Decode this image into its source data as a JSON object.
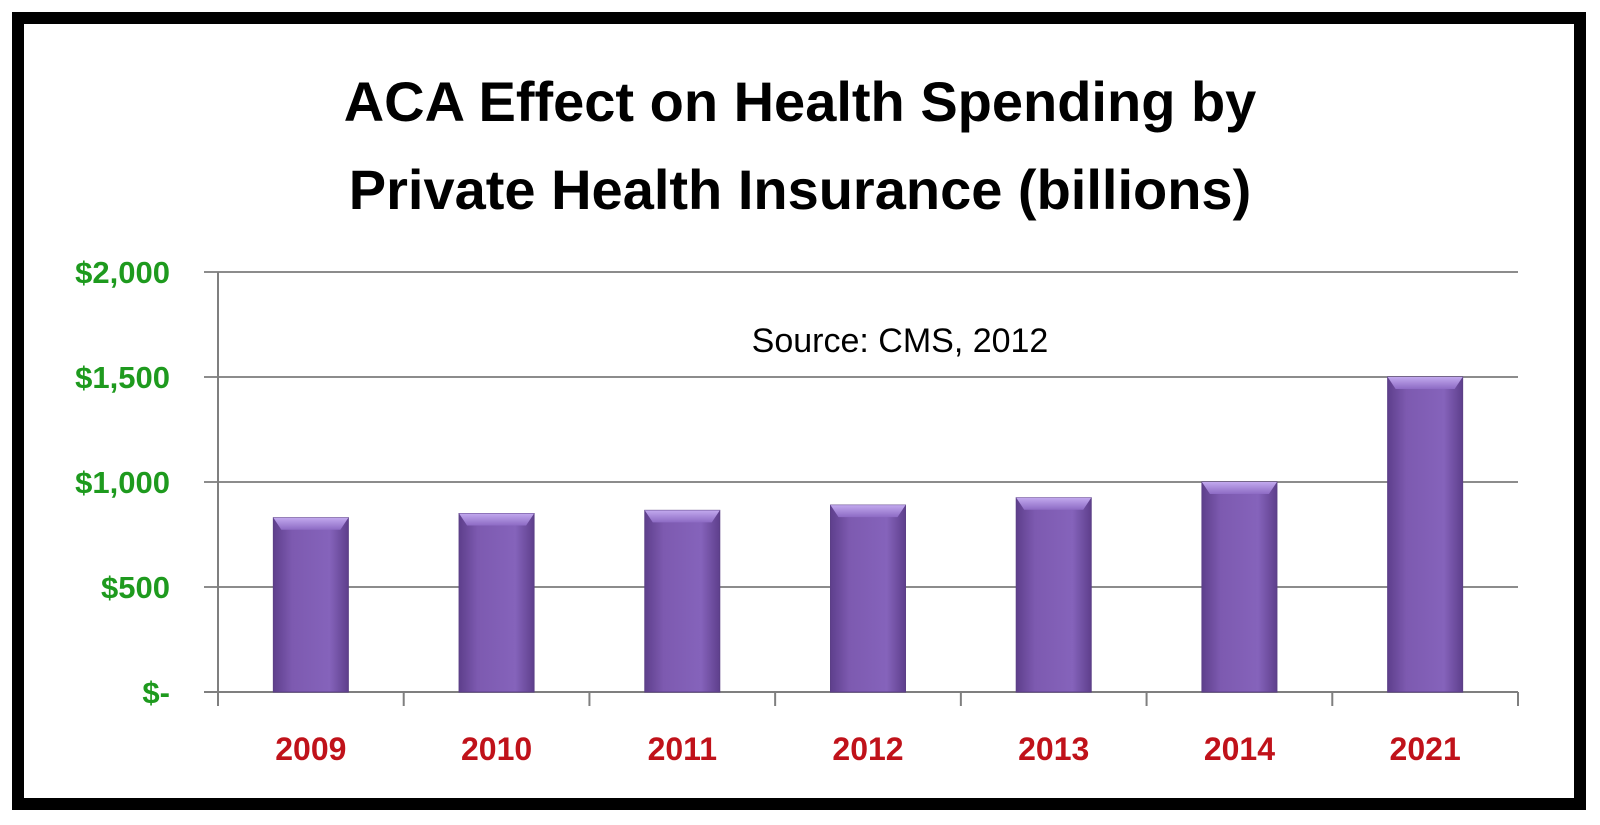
{
  "chart_data": {
    "type": "bar",
    "title_lines": [
      "ACA Effect on Health Spending by",
      "Private Health Insurance (billions)"
    ],
    "annotation": "Source: CMS, 2012",
    "categories": [
      "2009",
      "2010",
      "2011",
      "2012",
      "2013",
      "2014",
      "2021"
    ],
    "values": [
      830,
      850,
      865,
      890,
      925,
      1000,
      1500
    ],
    "ylim": [
      0,
      2000
    ],
    "yticks": [
      0,
      500,
      1000,
      1500,
      2000
    ],
    "ytick_labels": [
      "$-",
      "$500",
      "$1,000",
      "$1,500",
      "$2,000"
    ],
    "xlabel": "",
    "ylabel": "",
    "grid": true,
    "legend": "none"
  },
  "colors": {
    "bar_fill": "#7d5ab0",
    "bar_top": "#a78bd8",
    "ytick_text": "#1e9a1e",
    "xtick_text": "#c0121a",
    "gridline": "#8c8c8c",
    "frame": "#000000"
  }
}
